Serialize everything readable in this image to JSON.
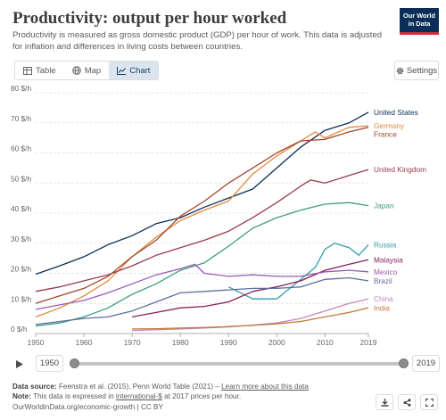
{
  "header": {
    "title": "Productivity: output per hour worked",
    "subtitle": "Productivity is measured as gross domestic product (GDP) per hour of work. This data is adjusted for inflation and differences in living costs between countries.",
    "logo_line1": "Our World",
    "logo_line2": "in Data"
  },
  "tabs": [
    {
      "label": "Table",
      "icon": "table-icon",
      "active": false
    },
    {
      "label": "Map",
      "icon": "globe-icon",
      "active": false
    },
    {
      "label": "Chart",
      "icon": "chart-line-icon",
      "active": true
    }
  ],
  "settings_label": "Settings",
  "timeline": {
    "start": "1950",
    "end": "2019"
  },
  "footer": {
    "source_label": "Data source:",
    "source_text": "Feenstra et al. (2015), Penn World Table (2021) –",
    "source_link": "Learn more about this data",
    "note_label": "Note:",
    "note_pre": "This data is expressed in",
    "note_link": "international-$",
    "note_post": "at 2017 prices per hour.",
    "url": "OurWorldinData.org/economic-growth | CC BY"
  },
  "chart_data": {
    "type": "line",
    "ylim": [
      0,
      80
    ],
    "xlim": [
      1950,
      2019
    ],
    "y_ticks": [
      "0 $/h",
      "10 $/h",
      "20 $/h",
      "30 $/h",
      "40 $/h",
      "50 $/h",
      "60 $/h",
      "70 $/h",
      "80 $/h"
    ],
    "y_tick_values": [
      0,
      10,
      20,
      30,
      40,
      50,
      60,
      70,
      80
    ],
    "x_ticks": [
      "1950",
      "1960",
      "1970",
      "1980",
      "1990",
      "2000",
      "2010",
      "2019"
    ],
    "x_tick_values": [
      1950,
      1960,
      1970,
      1980,
      1990,
      2000,
      2010,
      2019
    ],
    "grid": true,
    "series": [
      {
        "name": "United States",
        "color": "#0b2e59",
        "x": [
          1950,
          1955,
          1960,
          1965,
          1970,
          1975,
          1980,
          1985,
          1990,
          1995,
          2000,
          2005,
          2010,
          2015,
          2019
        ],
        "y": [
          19.7,
          22.5,
          25.5,
          29.5,
          32.5,
          36.5,
          38.5,
          42,
          45,
          48,
          55,
          62,
          67.5,
          70,
          73.5
        ]
      },
      {
        "name": "Germany",
        "color": "#e08a3c",
        "x": [
          1950,
          1955,
          1960,
          1965,
          1970,
          1975,
          1980,
          1985,
          1990,
          1995,
          2000,
          2005,
          2008,
          2010,
          2015,
          2019
        ],
        "y": [
          5.5,
          8.5,
          12.5,
          17.5,
          25.5,
          32,
          37.5,
          41,
          44,
          53,
          59,
          64,
          67,
          65,
          68.5,
          69
        ]
      },
      {
        "name": "France",
        "color": "#a2462c",
        "x": [
          1950,
          1955,
          1960,
          1965,
          1970,
          1975,
          1980,
          1985,
          1990,
          1995,
          2000,
          2005,
          2010,
          2015,
          2019
        ],
        "y": [
          10,
          12.5,
          15,
          19,
          25.5,
          31,
          39,
          44,
          50,
          55,
          60,
          64,
          64.5,
          67,
          68.5
        ]
      },
      {
        "name": "United Kingdom",
        "color": "#9a3a4f",
        "x": [
          1950,
          1955,
          1960,
          1965,
          1970,
          1975,
          1980,
          1985,
          1990,
          1995,
          2000,
          2005,
          2007,
          2010,
          2015,
          2019
        ],
        "y": [
          14,
          15.5,
          17.5,
          19.5,
          22.5,
          26,
          28.5,
          31,
          34,
          38.5,
          43.5,
          49,
          51,
          50,
          52.5,
          54.5
        ]
      },
      {
        "name": "Japan",
        "color": "#3e9c84",
        "x": [
          1950,
          1955,
          1960,
          1965,
          1970,
          1975,
          1980,
          1985,
          1990,
          1995,
          2000,
          2005,
          2010,
          2015,
          2019
        ],
        "y": [
          2.5,
          3.5,
          5.5,
          8.5,
          13,
          16.5,
          21,
          23.5,
          29,
          35,
          38.5,
          41,
          43,
          43.5,
          42.5
        ]
      },
      {
        "name": "Russia",
        "color": "#2f9ea9",
        "x": [
          1990,
          1995,
          2000,
          2005,
          2008,
          2010,
          2012,
          2015,
          2017,
          2019
        ],
        "y": [
          15.5,
          11.5,
          11.5,
          18,
          22,
          28,
          30,
          28.5,
          26,
          29.5
        ]
      },
      {
        "name": "Malaysia",
        "color": "#8a1f5a",
        "x": [
          1970,
          1975,
          1980,
          1985,
          1990,
          1995,
          2000,
          2005,
          2010,
          2015,
          2019
        ],
        "y": [
          5.5,
          7,
          8.5,
          9,
          10.5,
          14,
          15.5,
          17.5,
          21,
          23,
          24.5
        ]
      },
      {
        "name": "Mexico",
        "color": "#9b59b6",
        "x": [
          1950,
          1955,
          1960,
          1965,
          1970,
          1975,
          1980,
          1983,
          1985,
          1990,
          1995,
          2000,
          2005,
          2010,
          2015,
          2019
        ],
        "y": [
          8,
          9.5,
          11,
          13.5,
          16.5,
          19.5,
          21.5,
          23,
          20,
          19,
          19.5,
          19,
          19,
          20.5,
          21,
          20.5
        ]
      },
      {
        "name": "Brazil",
        "color": "#5d6ea0",
        "x": [
          1950,
          1955,
          1960,
          1965,
          1970,
          1975,
          1980,
          1985,
          1990,
          1995,
          2000,
          2005,
          2010,
          2015,
          2019
        ],
        "y": [
          3,
          4,
          5,
          5.5,
          7.5,
          10.5,
          13.5,
          14,
          14.5,
          15,
          15,
          15.5,
          18,
          18.5,
          17.5
        ]
      },
      {
        "name": "China",
        "color": "#c586bc",
        "x": [
          1970,
          1975,
          1980,
          1985,
          1990,
          1995,
          2000,
          2005,
          2010,
          2015,
          2019
        ],
        "y": [
          1,
          1.2,
          1.5,
          1.8,
          2.2,
          2.8,
          3.5,
          5,
          7.5,
          10,
          11.5
        ]
      },
      {
        "name": "India",
        "color": "#c07a3a",
        "x": [
          1970,
          1975,
          1980,
          1985,
          1990,
          1995,
          2000,
          2005,
          2010,
          2015,
          2019
        ],
        "y": [
          1.5,
          1.6,
          1.8,
          2,
          2.3,
          2.7,
          3.2,
          4,
          5.5,
          7,
          8.5
        ]
      }
    ]
  }
}
